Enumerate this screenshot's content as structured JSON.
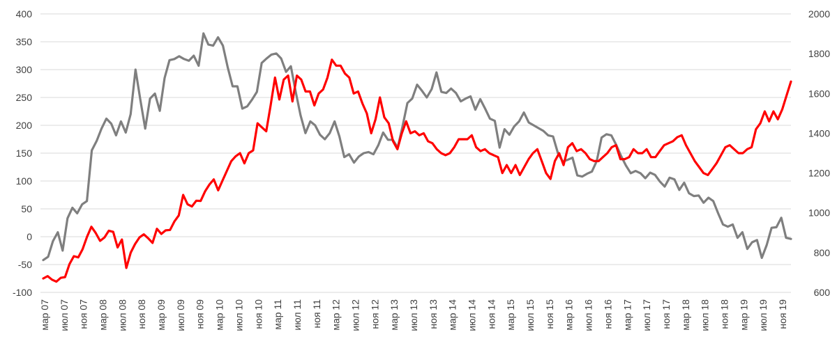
{
  "chart_data": {
    "type": "line",
    "title": "",
    "grid": true,
    "y_left": {
      "ticks": [
        "-100",
        "-50",
        "0",
        "50",
        "100",
        "150",
        "200",
        "250",
        "300",
        "350",
        "400"
      ],
      "range": [
        -100,
        400
      ]
    },
    "y_right": {
      "ticks": [
        "600",
        "800",
        "1000",
        "1200",
        "1400",
        "1600",
        "1800",
        "2000"
      ],
      "range": [
        600,
        2000
      ]
    },
    "x_labels": [
      "мар 07",
      "июл 07",
      "ноя 07",
      "мар 08",
      "июл 08",
      "ноя 08",
      "мар 09",
      "июл 09",
      "ноя 09",
      "мар 10",
      "июл 10",
      "ноя 10",
      "мар 11",
      "июл 11",
      "ноя 11",
      "мар 12",
      "июл 12",
      "ноя 12",
      "мар 13",
      "июл 13",
      "ноя 13",
      "мар 14",
      "июл 14",
      "ноя 14",
      "мар 15",
      "июл 15",
      "ноя 15",
      "мар 16",
      "июл 16",
      "ноя 16",
      "мар 17",
      "июл 17",
      "ноя 17",
      "мар 18",
      "июл 18",
      "ноя 18",
      "мар 19",
      "июл 19",
      "ноя 19"
    ],
    "series": [
      {
        "name": "gray",
        "axis": "left",
        "color": "#7f7f7f",
        "values": [
          -42,
          -36,
          -8,
          8,
          -25,
          33,
          52,
          42,
          58,
          64,
          155,
          172,
          194,
          212,
          203,
          182,
          207,
          187,
          220,
          300,
          246,
          194,
          248,
          257,
          226,
          285,
          317,
          319,
          324,
          319,
          316,
          325,
          307,
          365,
          345,
          343,
          358,
          343,
          304,
          270,
          270,
          230,
          234,
          246,
          260,
          312,
          320,
          327,
          329,
          320,
          296,
          306,
          260,
          218,
          186,
          207,
          200,
          183,
          175,
          186,
          207,
          180,
          143,
          148,
          133,
          144,
          150,
          152,
          148,
          164,
          187,
          174,
          174,
          160,
          198,
          240,
          248,
          273,
          262,
          250,
          265,
          295,
          260,
          258,
          266,
          258,
          243,
          248,
          252,
          228,
          247,
          230,
          212,
          208,
          160,
          193,
          183,
          198,
          207,
          223,
          205,
          200,
          195,
          190,
          182,
          180,
          150,
          135,
          138,
          142,
          110,
          108,
          113,
          117,
          136,
          178,
          184,
          182,
          165,
          145,
          128,
          114,
          118,
          114,
          105,
          115,
          111,
          99,
          90,
          106,
          103,
          84,
          97,
          78,
          73,
          74,
          61,
          70,
          64,
          42,
          22,
          18,
          22,
          -2,
          8,
          -22,
          -10,
          -6,
          -38,
          -15,
          16,
          17,
          34,
          -2,
          -4
        ]
      },
      {
        "name": "red",
        "axis": "right",
        "color": "#ff0000",
        "values": [
          670,
          682,
          664,
          654,
          673,
          677,
          742,
          782,
          776,
          817,
          879,
          930,
          899,
          859,
          876,
          910,
          904,
          826,
          866,
          723,
          800,
          843,
          876,
          892,
          872,
          849,
          920,
          894,
          912,
          914,
          957,
          987,
          1090,
          1043,
          1032,
          1061,
          1060,
          1108,
          1142,
          1168,
          1113,
          1162,
          1211,
          1260,
          1284,
          1300,
          1249,
          1300,
          1314,
          1450,
          1430,
          1410,
          1540,
          1680,
          1570,
          1670,
          1690,
          1560,
          1690,
          1670,
          1610,
          1610,
          1540,
          1600,
          1620,
          1680,
          1770,
          1740,
          1740,
          1700,
          1680,
          1600,
          1610,
          1550,
          1500,
          1400,
          1470,
          1580,
          1480,
          1450,
          1360,
          1320,
          1400,
          1460,
          1400,
          1410,
          1390,
          1400,
          1360,
          1350,
          1320,
          1300,
          1290,
          1300,
          1330,
          1370,
          1370,
          1370,
          1390,
          1330,
          1310,
          1320,
          1300,
          1290,
          1280,
          1200,
          1240,
          1200,
          1240,
          1190,
          1230,
          1270,
          1300,
          1320,
          1260,
          1200,
          1170,
          1260,
          1300,
          1240,
          1330,
          1350,
          1310,
          1320,
          1300,
          1270,
          1260,
          1260,
          1280,
          1300,
          1330,
          1340,
          1270,
          1270,
          1280,
          1320,
          1300,
          1300,
          1320,
          1280,
          1280,
          1310,
          1340,
          1350,
          1360,
          1380,
          1390,
          1340,
          1300,
          1260,
          1230,
          1200,
          1190,
          1220,
          1250,
          1290,
          1330,
          1340,
          1320,
          1300,
          1300,
          1320,
          1330,
          1420,
          1450,
          1510,
          1460,
          1510,
          1470,
          1520,
          1590,
          1660
        ]
      }
    ]
  }
}
